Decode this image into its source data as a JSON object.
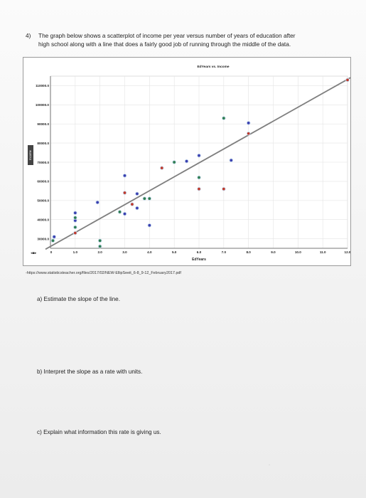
{
  "question": {
    "number": "4)",
    "line1": "The graph below shows a scatterplot of income per year versus number of years of education after",
    "line2": "high school along with a line that does a fairly good job of running through the middle of the data."
  },
  "chart_data": {
    "type": "scatter",
    "title": "EdYears vs. Income",
    "xlabel": "EdYears",
    "ylabel": "Income",
    "xlim": [
      0,
      12
    ],
    "ylim": [
      25000,
      115000
    ],
    "x_ticks": [
      "1.0",
      "2.0",
      "3.0",
      "4.0",
      "5.0",
      "6.0",
      "7.0",
      "8.0",
      "9.0",
      "10.0",
      "11.0",
      "12.0"
    ],
    "y_ticks": [
      "30000.0",
      "40000.0",
      "50000.0",
      "60000.0",
      "70000.0",
      "80000.0",
      "90000.0",
      "100000.0",
      "110000.0"
    ],
    "corner_label": "0",
    "bottom_left_label": "◂▪▸",
    "points": [
      {
        "x": 0.1,
        "y": 29000,
        "color": "#2e7d4f"
      },
      {
        "x": 0.15,
        "y": 31000,
        "color": "#3a3fb0"
      },
      {
        "x": 1.0,
        "y": 36000,
        "color": "#2e7d4f"
      },
      {
        "x": 1.0,
        "y": 39500,
        "color": "#3a3fb0"
      },
      {
        "x": 1.0,
        "y": 41000,
        "color": "#2e7d4f"
      },
      {
        "x": 1.0,
        "y": 43500,
        "color": "#3a3fb0"
      },
      {
        "x": 1.0,
        "y": 33000,
        "color": "#c0392b"
      },
      {
        "x": 1.9,
        "y": 49000,
        "color": "#3a3fb0"
      },
      {
        "x": 2.0,
        "y": 26000,
        "color": "#2e7d4f"
      },
      {
        "x": 2.0,
        "y": 29000,
        "color": "#2e7d4f"
      },
      {
        "x": 2.8,
        "y": 44000,
        "color": "#2e7d4f"
      },
      {
        "x": 3.0,
        "y": 43000,
        "color": "#3a3fb0"
      },
      {
        "x": 3.0,
        "y": 54000,
        "color": "#c0392b"
      },
      {
        "x": 3.0,
        "y": 63000,
        "color": "#3a3fb0"
      },
      {
        "x": 3.3,
        "y": 48000,
        "color": "#c0392b"
      },
      {
        "x": 3.5,
        "y": 46000,
        "color": "#3a3fb0"
      },
      {
        "x": 3.5,
        "y": 53500,
        "color": "#3a3fb0"
      },
      {
        "x": 3.8,
        "y": 51000,
        "color": "#2e7d4f"
      },
      {
        "x": 4.0,
        "y": 37000,
        "color": "#3a3fb0"
      },
      {
        "x": 4.0,
        "y": 51000,
        "color": "#2e7d4f"
      },
      {
        "x": 4.5,
        "y": 67000,
        "color": "#c0392b"
      },
      {
        "x": 5.0,
        "y": 70000,
        "color": "#2e7d4f"
      },
      {
        "x": 5.5,
        "y": 70500,
        "color": "#3a3fb0"
      },
      {
        "x": 6.0,
        "y": 56000,
        "color": "#c0392b"
      },
      {
        "x": 6.0,
        "y": 62000,
        "color": "#2e7d4f"
      },
      {
        "x": 6.0,
        "y": 73500,
        "color": "#3a3fb0"
      },
      {
        "x": 7.0,
        "y": 56000,
        "color": "#c0392b"
      },
      {
        "x": 7.0,
        "y": 93000,
        "color": "#2e7d4f"
      },
      {
        "x": 7.3,
        "y": 71000,
        "color": "#3a3fb0"
      },
      {
        "x": 8.0,
        "y": 85000,
        "color": "#c0392b"
      },
      {
        "x": 8.0,
        "y": 90500,
        "color": "#3a3fb0"
      },
      {
        "x": 12.0,
        "y": 113000,
        "color": "#c0392b"
      }
    ],
    "line": {
      "x": [
        -0.2,
        12.3
      ],
      "y": [
        24500,
        115500
      ],
      "color": "#7f7f7f"
    },
    "grid": true,
    "marker_style": "filled-with-light-ring"
  },
  "source_url": "-https://www.statisticsteacher.org/files/2017/02/NEW-EllipSeeit_6-8_9-12_February2017.pdf",
  "parts": {
    "a": "a)   Estimate the slope of the line.",
    "b": "b)   Interpret the slope as a rate with units.",
    "c": "c)   Explain what information this rate is giving us."
  },
  "page_mark": "→"
}
